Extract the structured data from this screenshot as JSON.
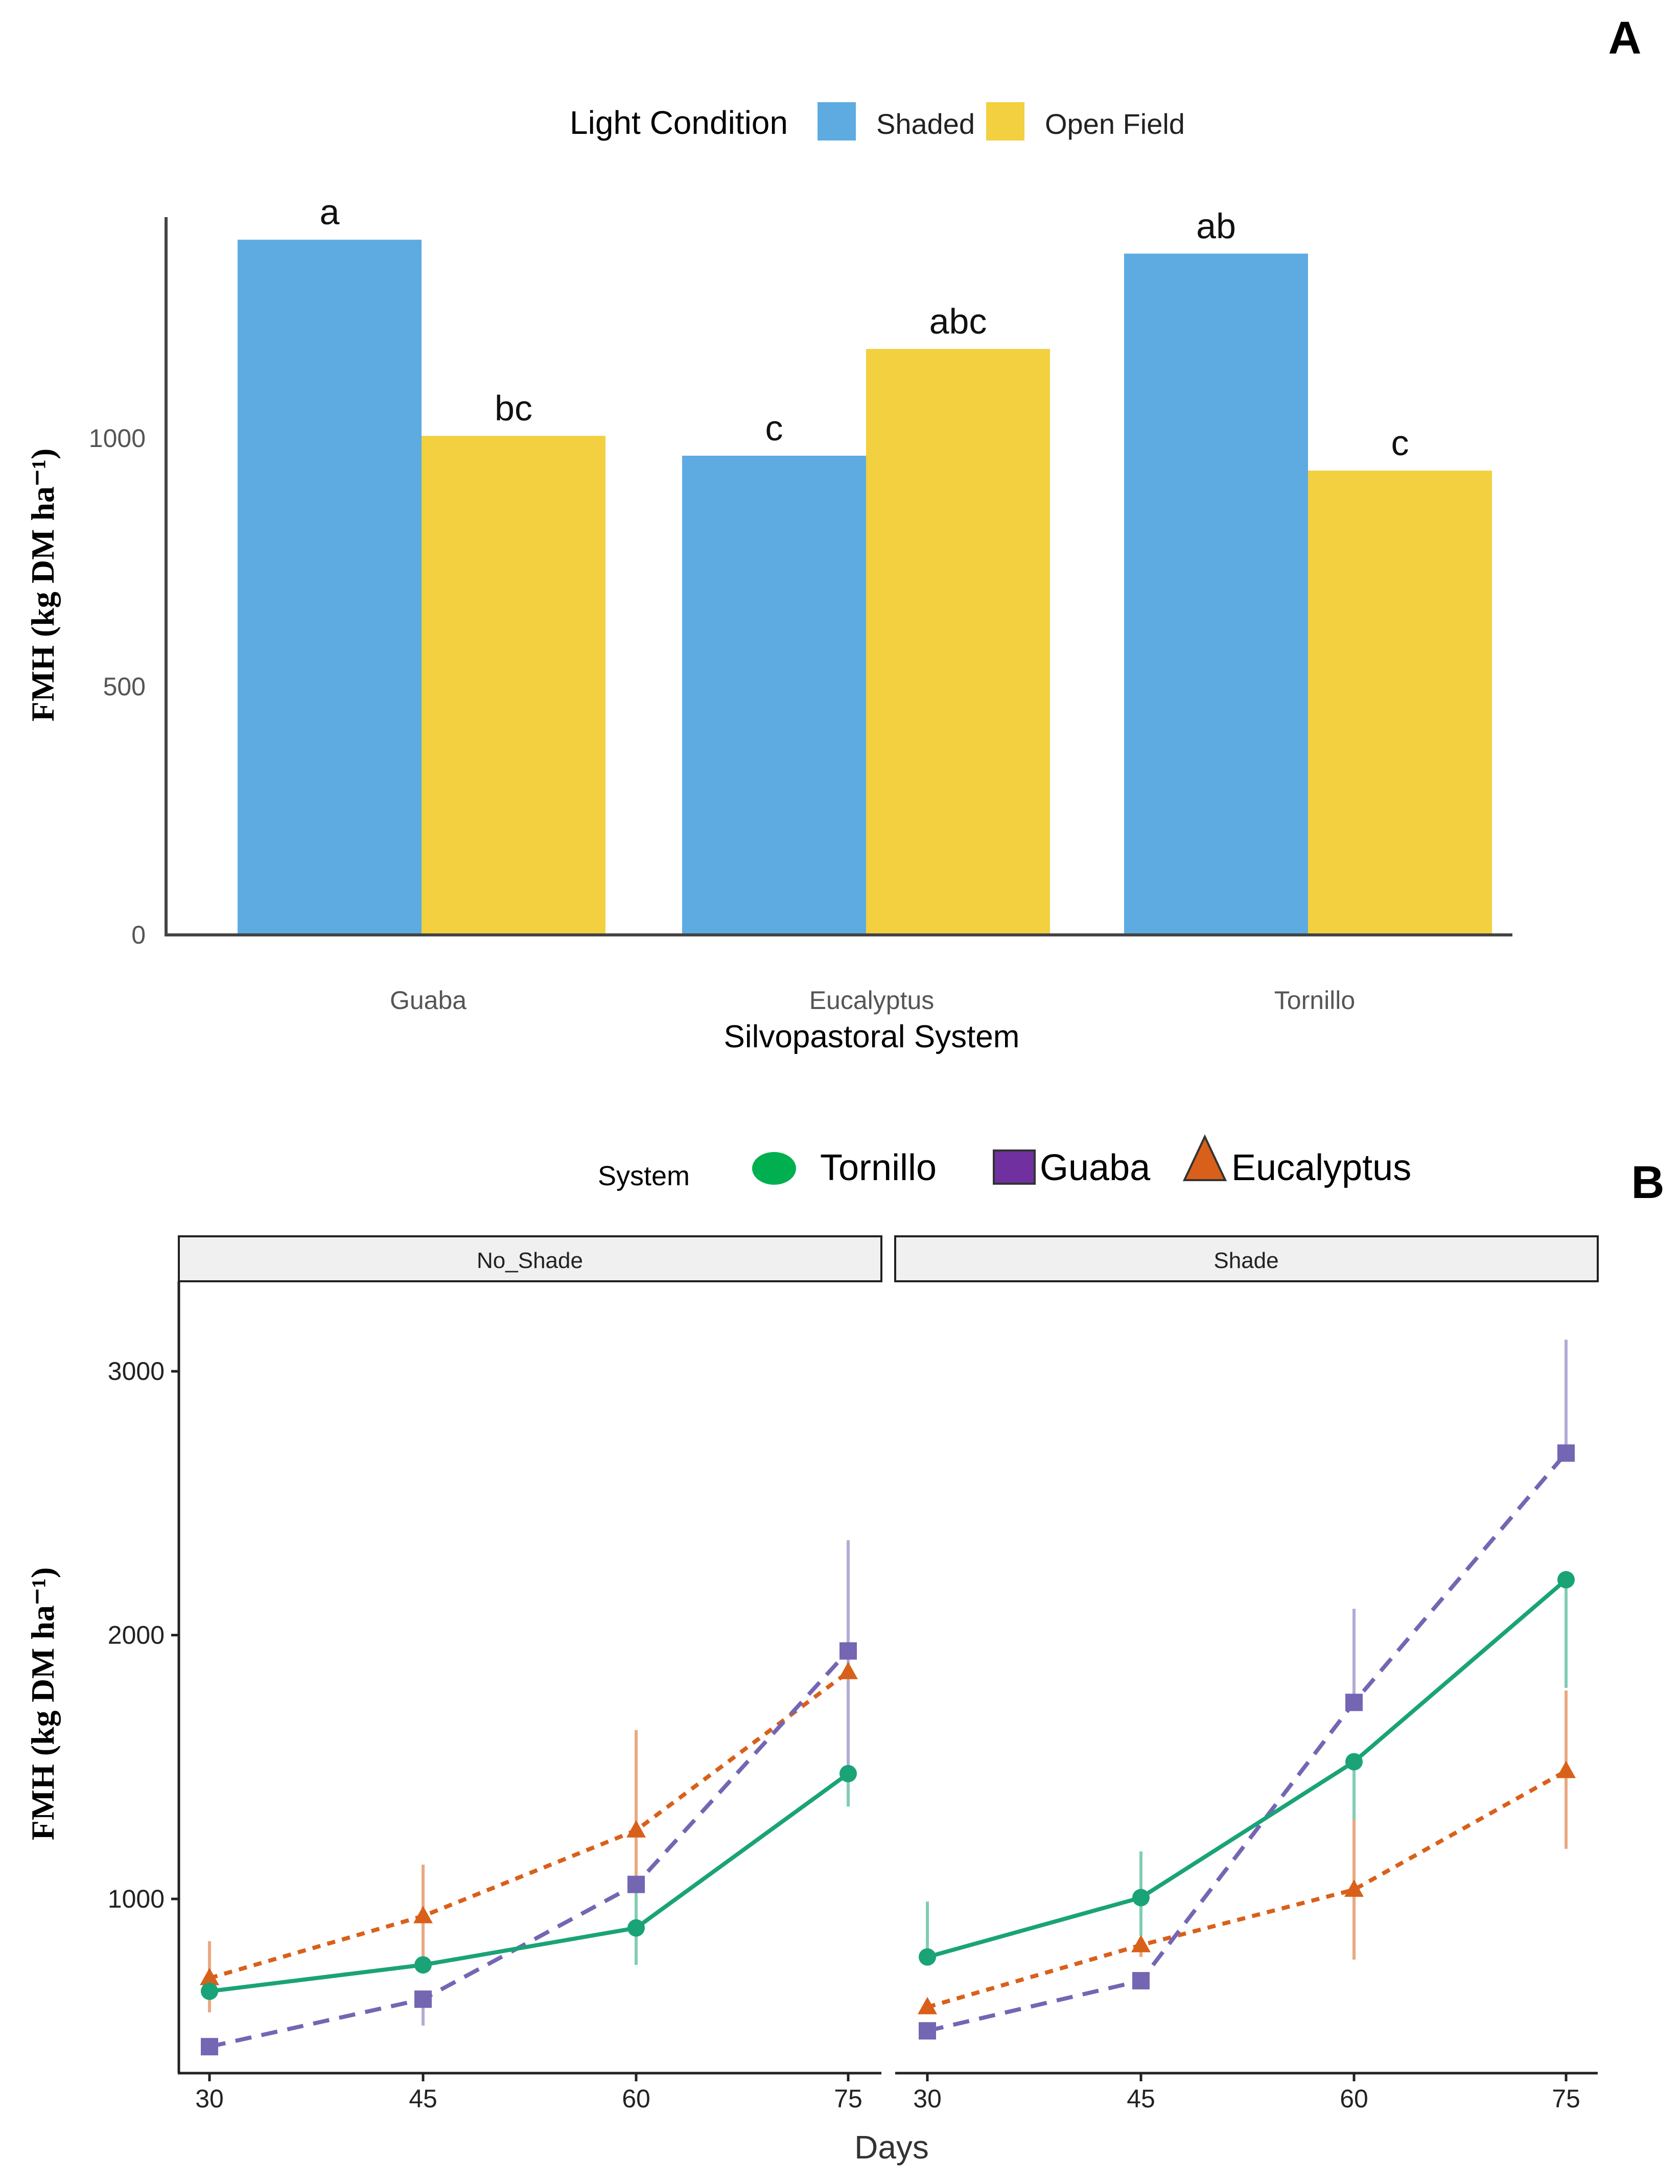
{
  "colors": {
    "shaded": "#5dabe1",
    "open_field": "#f2d03f",
    "tornillo": "#1aa377",
    "guaba": "#7466b3",
    "eucalyptus": "#d9601a"
  },
  "chart_data": [
    {
      "type": "bar",
      "panel_label": "A",
      "title": "",
      "xlabel": "Silvopastoral System",
      "ylabel": "FMH (kg DM ha⁻¹)",
      "ylim": [
        0,
        1450
      ],
      "yticks": [
        0,
        500,
        1000
      ],
      "grid": false,
      "legend": {
        "title": "Light Condition",
        "position": "top",
        "entries": [
          "Shaded",
          "Open Field"
        ]
      },
      "categories": [
        "Guaba",
        "Eucalyptus",
        "Tornillo"
      ],
      "series": [
        {
          "name": "Shaded",
          "values": [
            1400,
            965,
            1372
          ],
          "letters": [
            "a",
            "c",
            "ab"
          ]
        },
        {
          "name": "Open Field",
          "values": [
            1005,
            1180,
            935
          ],
          "letters": [
            "bc",
            "abc",
            "c"
          ]
        }
      ]
    },
    {
      "type": "line",
      "panel_label": "B",
      "xlabel": "Days",
      "ylabel": "FMH (kg DM ha⁻¹)",
      "x": [
        30,
        45,
        60,
        75
      ],
      "ylim": [
        400,
        3300
      ],
      "yticks": [
        1000,
        2000,
        3000
      ],
      "grid": false,
      "legend": {
        "title": "System",
        "position": "top",
        "entries": [
          "Tornillo",
          "Guaba",
          "Eucalyptus"
        ]
      },
      "facets": [
        {
          "label": "No_Shade",
          "series": [
            {
              "name": "Tornillo",
              "values": [
                650,
                750,
                890,
                1475
              ],
              "err": [
                [
                  650,
                  650
                ],
                [
                  750,
                  750
                ],
                [
                  750,
                  1050
                ],
                [
                  1350,
                  1475
                ]
              ]
            },
            {
              "name": "Guaba",
              "values": [
                440,
                620,
                1055,
                1940
              ],
              "err": [
                [
                  440,
                  440
                ],
                [
                  520,
                  620
                ],
                [
                  1055,
                  1055
                ],
                [
                  1480,
                  2360
                ]
              ]
            },
            {
              "name": "Eucalyptus",
              "values": [
                700,
                935,
                1260,
                1860
              ],
              "err": [
                [
                  570,
                  840
                ],
                [
                  740,
                  1130
                ],
                [
                  1040,
                  1640
                ],
                [
                  1860,
                  1860
                ]
              ]
            }
          ]
        },
        {
          "label": "Shade",
          "series": [
            {
              "name": "Tornillo",
              "values": [
                780,
                1005,
                1520,
                2210
              ],
              "err": [
                [
                  780,
                  990
                ],
                [
                  860,
                  1180
                ],
                [
                  1300,
                  1520
                ],
                [
                  1800,
                  2210
                ]
              ]
            },
            {
              "name": "Guaba",
              "values": [
                500,
                690,
                1745,
                2690
              ],
              "err": [
                [
                  500,
                  500
                ],
                [
                  690,
                  690
                ],
                [
                  1745,
                  2100
                ],
                [
                  2690,
                  3120
                ]
              ]
            },
            {
              "name": "Eucalyptus",
              "values": [
                590,
                825,
                1035,
                1485
              ],
              "err": [
                [
                  590,
                  590
                ],
                [
                  780,
                  825
                ],
                [
                  770,
                  1300
                ],
                [
                  1190,
                  1790
                ]
              ]
            }
          ]
        }
      ]
    }
  ]
}
